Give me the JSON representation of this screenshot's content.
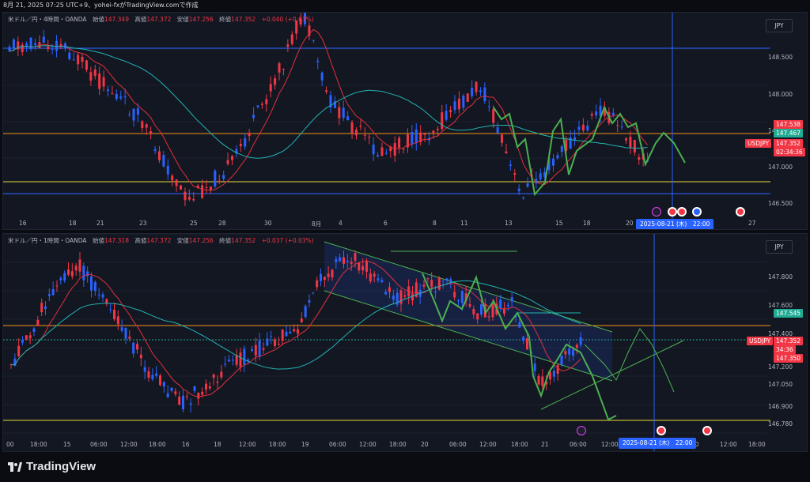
{
  "header": {
    "timestamp": "8月 21, 2025 07:25 UTC+9、yohei-fxがTradingView.comで作成"
  },
  "top_chart": {
    "title": "米ドル／円・4時間・OANDA",
    "open_label": "始値",
    "open": "147.349",
    "high_label": "高値",
    "high": "147.372",
    "low_label": "安値",
    "low": "147.256",
    "close_label": "終値",
    "close": "147.352",
    "change": "+0.040 (+0.03%)",
    "currency": "JPY",
    "price_axis": [
      "148.500",
      "148.000",
      "147.500",
      "147.000",
      "146.500"
    ],
    "tags": {
      "high_price": "147.538",
      "mid_price": "147.467",
      "symbol": "USDJPY",
      "price": "147.352",
      "countdown": "02:34:36"
    },
    "time_axis": [
      "16",
      "18",
      "21",
      "23",
      "25",
      "28",
      "30",
      "8月",
      "4",
      "6",
      "8",
      "11",
      "13",
      "15",
      "18",
      "20",
      "27"
    ],
    "cursor_date": "2025-08-21 (木)　22:00"
  },
  "bottom_chart": {
    "title": "米ドル／円・1時間・OANDA",
    "open_label": "始値",
    "open": "147.318",
    "high_label": "高値",
    "high": "147.372",
    "low_label": "安値",
    "low": "147.256",
    "close_label": "終値",
    "close": "147.352",
    "change": "+0.037 (+0.03%)",
    "currency": "JPY",
    "price_axis": [
      "147.800",
      "147.600",
      "147.400",
      "147.200",
      "147.050",
      "146.900",
      "146.780"
    ],
    "tags": {
      "high_price": "147.545",
      "symbol": "USDJPY",
      "price": "147.352",
      "countdown": "34:36",
      "bid": "147.350"
    },
    "time_axis": [
      "00",
      "18:00",
      "15",
      "06:00",
      "12:00",
      "18:00",
      "16",
      "18",
      "12:00",
      "18:00",
      "19",
      "06:00",
      "12:00",
      "18:00",
      "20",
      "06:00",
      "12:00",
      "18:00",
      "21",
      "06:00",
      "12:00",
      "00",
      "12:00",
      "18:00"
    ],
    "cursor_date": "2025-08-21 (木)　22:00"
  },
  "footer": {
    "brand": "TradingView"
  },
  "colors": {
    "up": "#f23645",
    "down": "#2962ff",
    "bg": "#131722",
    "ma_fast": "#e0303d",
    "ma_slow": "#22b3b3",
    "projection": "#4caf50",
    "orange_line": "#f7931a",
    "yellow_line": "#e8d83c"
  }
}
